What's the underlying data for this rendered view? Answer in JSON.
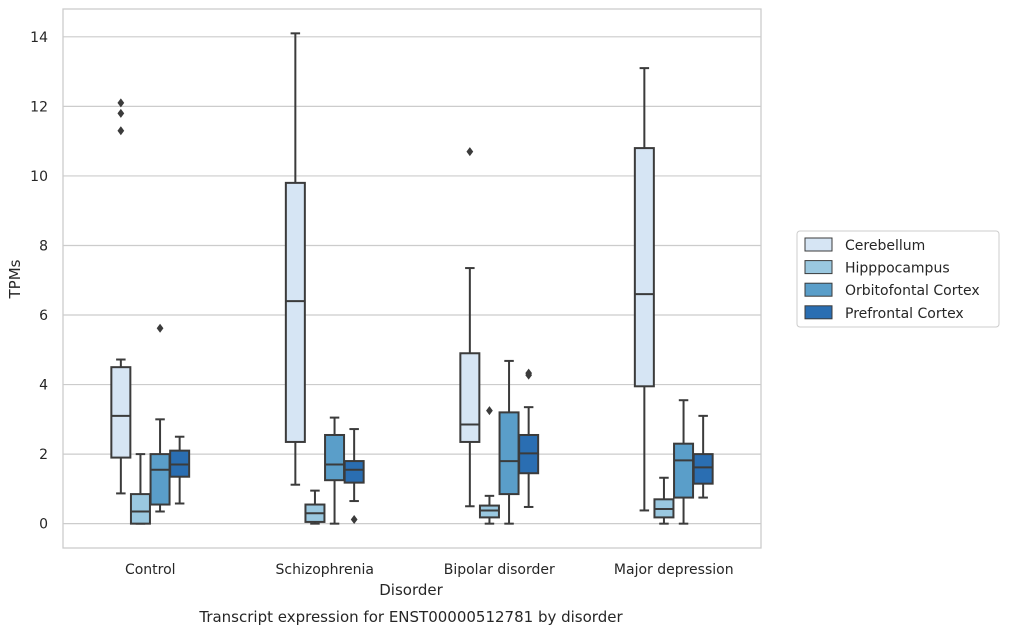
{
  "caption": "Transcript expression for ENST00000512781 by disorder",
  "chart_data": {
    "type": "box",
    "xlabel": "Disorder",
    "ylabel": "TPMs",
    "ylim": [
      -0.7,
      14.8
    ],
    "yticks": [
      0,
      2,
      4,
      6,
      8,
      10,
      12,
      14
    ],
    "grid": "horizontal",
    "legend_placement": "right",
    "categories": [
      "Control",
      "Schizophrenia",
      "Bipolar disorder",
      "Major depression"
    ],
    "series": [
      {
        "name": "Cerebellum",
        "color": "#d6e5f4",
        "boxes": [
          {
            "min": 0.87,
            "q1": 1.9,
            "median": 3.1,
            "q3": 4.5,
            "max": 4.72,
            "outliers": [
              11.3,
              11.8,
              12.1
            ]
          },
          {
            "min": 1.12,
            "q1": 2.35,
            "median": 6.4,
            "q3": 9.8,
            "max": 14.1,
            "outliers": []
          },
          {
            "min": 0.5,
            "q1": 2.35,
            "median": 2.85,
            "q3": 4.9,
            "max": 7.35,
            "outliers": [
              10.7
            ]
          },
          {
            "min": 0.38,
            "q1": 3.95,
            "median": 6.6,
            "q3": 10.8,
            "max": 13.1,
            "outliers": []
          }
        ]
      },
      {
        "name": "Hipppocampus",
        "color": "#9ac8e0",
        "boxes": [
          {
            "min": 0.0,
            "q1": 0.0,
            "median": 0.35,
            "q3": 0.85,
            "max": 2.0,
            "outliers": []
          },
          {
            "min": 0.0,
            "q1": 0.05,
            "median": 0.3,
            "q3": 0.55,
            "max": 0.95,
            "outliers": []
          },
          {
            "min": 0.0,
            "q1": 0.18,
            "median": 0.38,
            "q3": 0.52,
            "max": 0.8,
            "outliers": [
              3.25
            ]
          },
          {
            "min": 0.0,
            "q1": 0.18,
            "median": 0.42,
            "q3": 0.7,
            "max": 1.32,
            "outliers": []
          }
        ]
      },
      {
        "name": "Orbitofontal Cortex",
        "color": "#5a9ec9",
        "boxes": [
          {
            "min": 0.35,
            "q1": 0.55,
            "median": 1.55,
            "q3": 2.0,
            "max": 3.0,
            "outliers": [
              5.62
            ]
          },
          {
            "min": 0.0,
            "q1": 1.25,
            "median": 1.7,
            "q3": 2.55,
            "max": 3.05,
            "outliers": []
          },
          {
            "min": 0.0,
            "q1": 0.85,
            "median": 1.8,
            "q3": 3.2,
            "max": 4.68,
            "outliers": []
          },
          {
            "min": 0.0,
            "q1": 0.75,
            "median": 1.82,
            "q3": 2.3,
            "max": 3.55,
            "outliers": []
          }
        ]
      },
      {
        "name": "Prefrontal Cortex",
        "color": "#2a6eb2",
        "boxes": [
          {
            "min": 0.58,
            "q1": 1.35,
            "median": 1.7,
            "q3": 2.1,
            "max": 2.5,
            "outliers": []
          },
          {
            "min": 0.65,
            "q1": 1.18,
            "median": 1.55,
            "q3": 1.8,
            "max": 2.72,
            "outliers": [
              0.12
            ]
          },
          {
            "min": 0.48,
            "q1": 1.45,
            "median": 2.02,
            "q3": 2.55,
            "max": 3.35,
            "outliers": [
              4.27,
              4.33
            ]
          },
          {
            "min": 0.75,
            "q1": 1.15,
            "median": 1.62,
            "q3": 2.0,
            "max": 3.1,
            "outliers": []
          }
        ]
      }
    ]
  }
}
